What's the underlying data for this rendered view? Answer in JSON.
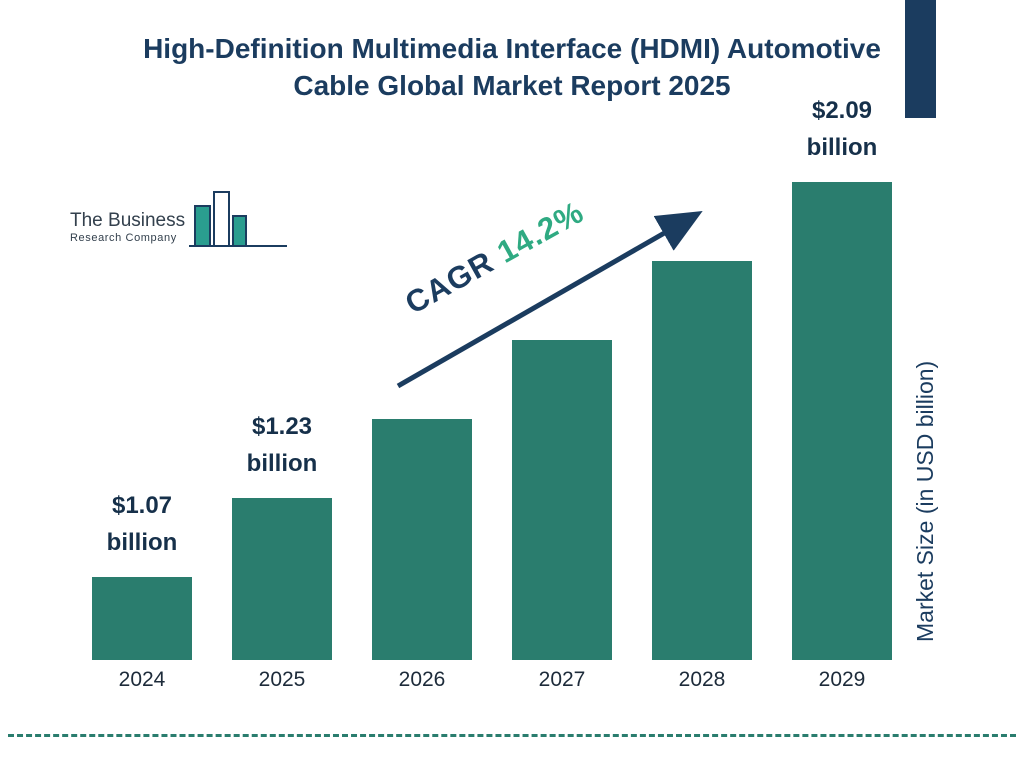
{
  "title": {
    "line1": "High-Definition Multimedia Interface (HDMI) Automotive",
    "line2": "Cable Global Market Report 2025"
  },
  "logo": {
    "line1": "The Business",
    "line2": "Research Company"
  },
  "cagr": {
    "prefix": "CAGR",
    "value": "14.2%"
  },
  "colors": {
    "bar": "#2a7d6e",
    "navy": "#1b3c5f",
    "green": "#2faa82",
    "dashed_line": "#2a7d6e"
  },
  "chart_data": {
    "type": "bar",
    "title": "High-Definition Multimedia Interface (HDMI) Automotive Cable Global Market Report 2025",
    "categories": [
      "2024",
      "2025",
      "2026",
      "2027",
      "2028",
      "2029"
    ],
    "values": [
      1.07,
      1.23,
      1.41,
      1.6,
      1.83,
      2.09
    ],
    "value_labels": [
      "$1.07 billion",
      "$1.23 billion",
      null,
      null,
      null,
      "$2.09 billion"
    ],
    "cagr": "14.2%",
    "xlabel": "",
    "ylabel": "Market Size (in USD billion)",
    "legend": "none",
    "grid": "off",
    "bar_color": "#2a7d6e"
  }
}
